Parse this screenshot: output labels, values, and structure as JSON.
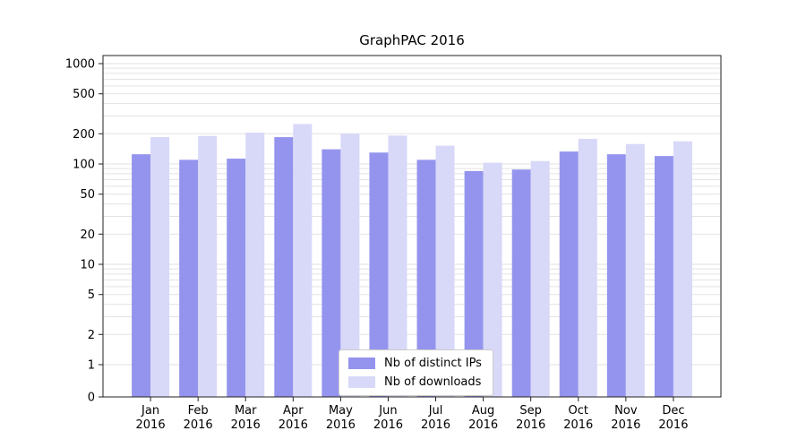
{
  "title": "GraphPAC 2016",
  "chart_data": {
    "type": "bar",
    "title": "GraphPAC 2016",
    "yscale": "symlog",
    "grid": "horizontal-minor",
    "legend_position": "lower center",
    "categories": [
      "Jan",
      "Feb",
      "Mar",
      "Apr",
      "May",
      "Jun",
      "Jul",
      "Aug",
      "Sep",
      "Oct",
      "Nov",
      "Dec"
    ],
    "year": "2016",
    "yticks": [
      0,
      1,
      2,
      5,
      10,
      20,
      50,
      100,
      200,
      500,
      1000
    ],
    "ylim": [
      0,
      1200
    ],
    "series": [
      {
        "name": "Nb of distinct IPs",
        "color": "#9494ee",
        "values": [
          125,
          110,
          113,
          185,
          140,
          130,
          110,
          85,
          88,
          133,
          125,
          120
        ]
      },
      {
        "name": "Nb of downloads",
        "color": "#d8d8f8",
        "values": [
          185,
          190,
          205,
          250,
          200,
          192,
          152,
          103,
          107,
          178,
          158,
          168
        ]
      }
    ],
    "colors": {
      "gridline": "#e2e2e2",
      "spine": "#222222",
      "text": "#000000"
    }
  }
}
